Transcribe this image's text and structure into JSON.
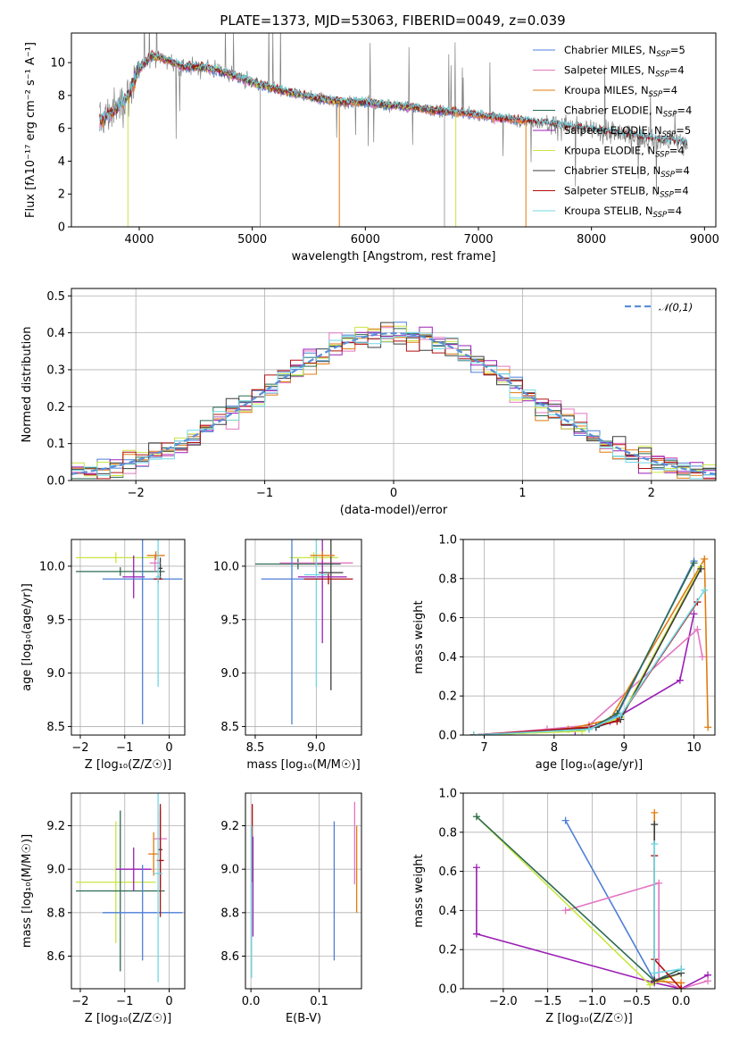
{
  "figure_title": "PLATE=1373, MJD=53063, FIBERID=0049, z=0.039",
  "colors": {
    "chabrier_miles": "#4e7fd8",
    "salpeter_miles": "#e377c2",
    "kroupa_miles": "#e07b10",
    "chabrier_elodie": "#2d6b52",
    "salpeter_elodie": "#9b1fb5",
    "kroupa_elodie": "#c8e640",
    "chabrier_stelib": "#3d3d3d",
    "salpeter_stelib": "#b01010",
    "kroupa_stelib": "#6fd8e6",
    "data": "#808080",
    "gauss": "#5b8fd9"
  },
  "chart_data": [
    {
      "id": "spectrum",
      "type": "line",
      "xlabel": "wavelength [Angstrom, rest frame]",
      "ylabel": "Flux [fλ10⁻¹⁷ erg cm⁻² s⁻¹ A⁻¹]",
      "xlim": [
        3400,
        9100
      ],
      "ylim": [
        0,
        11.8
      ],
      "xticks": [
        4000,
        5000,
        6000,
        7000,
        8000,
        9000
      ],
      "yticks": [
        0,
        2,
        4,
        6,
        8,
        10
      ],
      "grid": false,
      "legend_position": "top-right",
      "legend": [
        "Chabrier MILES, N_SSP=5",
        "Salpeter MILES, N_SSP=4",
        "Kroupa MILES, N_SSP=4",
        "Chabrier ELODIE, N_SSP=4",
        "Salpeter ELODIE, N_SSP=5",
        "Kroupa ELODIE, N_SSP=4",
        "Chabrier STELIB, N_SSP=4",
        "Salpeter STELIB, N_SSP=4",
        "Kroupa STELIB, N_SSP=4"
      ],
      "continuum": {
        "x": [
          3650,
          3700,
          3800,
          3900,
          4000,
          4100,
          4200,
          4300,
          4400,
          4500,
          4600,
          4800,
          5000,
          5200,
          5400,
          5600,
          5800,
          6000,
          6200,
          6400,
          6600,
          6800,
          7000,
          7200,
          7400,
          7600,
          7800,
          8000,
          8200,
          8400,
          8600,
          8850
        ],
        "y": [
          6.4,
          6.7,
          7.2,
          8.0,
          9.6,
          10.4,
          10.3,
          10.0,
          9.7,
          9.8,
          9.7,
          9.3,
          8.8,
          8.4,
          8.1,
          7.8,
          7.6,
          7.6,
          7.4,
          7.3,
          7.1,
          7.0,
          6.8,
          6.6,
          6.5,
          6.3,
          6.1,
          5.9,
          5.7,
          5.5,
          5.3,
          5.1
        ]
      }
    },
    {
      "id": "residuals",
      "type": "line",
      "xlabel": "(data-model)/error",
      "ylabel": "Normed distribution",
      "xlim": [
        -2.5,
        2.5
      ],
      "ylim": [
        0,
        0.52
      ],
      "xticks": [
        -2,
        -1,
        0,
        1,
        2
      ],
      "xtick_labels": [
        "−2",
        "−1",
        "0",
        "1",
        "2"
      ],
      "yticks": [
        0.0,
        0.1,
        0.2,
        0.3,
        0.4,
        0.5
      ],
      "ytick_labels": [
        "0.0",
        "0.1",
        "0.2",
        "0.3",
        "0.4",
        "0.5"
      ],
      "grid": true,
      "legend_position": "top-right",
      "gauss_label": "𝒩(0,1)",
      "bin_width": 0.1
    },
    {
      "id": "z-age",
      "xlabel": "Z [log₁₀(Z/Z☉)]",
      "ylabel": "age  [log₁₀(age/yr)]",
      "xlim": [
        -2.2,
        0.35
      ],
      "ylim": [
        8.42,
        10.25
      ],
      "xticks": [
        -2,
        -1,
        0
      ],
      "xtick_labels": [
        "−2",
        "−1",
        "0"
      ],
      "yticks": [
        8.5,
        9.0,
        9.5,
        10.0
      ],
      "ytick_labels": [
        "8.5",
        "9.0",
        "9.5",
        "10.0"
      ],
      "grid": true,
      "errorbars": [
        {
          "c": "kroupa_elodie",
          "x": -1.2,
          "xe": 0.9,
          "y": 10.08,
          "ye": 0.05
        },
        {
          "c": "chabrier_elodie",
          "x": -1.1,
          "xe": 1.0,
          "y": 9.95,
          "ye": 0.04
        },
        {
          "c": "chabrier_stelib",
          "x": -0.2,
          "xe": 0.05,
          "y": 9.98,
          "ye": 0.1
        },
        {
          "c": "salpeter_elodie",
          "x": -0.8,
          "xe": 0.25,
          "y": 9.9,
          "ye": 0.2
        },
        {
          "c": "chabrier_miles",
          "x": -0.6,
          "xe": 0.9,
          "y": 9.88,
          "ye": 1.36
        },
        {
          "c": "salpeter_miles",
          "x": -0.32,
          "xe": 0.12,
          "y": 10.03,
          "ye": 0.08
        },
        {
          "c": "kroupa_miles",
          "x": -0.3,
          "xe": 0.2,
          "y": 10.1,
          "ye": 0.04
        },
        {
          "c": "salpeter_stelib",
          "x": -0.25,
          "xe": 0.1,
          "y": 9.88,
          "ye": 0.04
        },
        {
          "c": "kroupa_stelib",
          "x": -0.25,
          "xe": 0.05,
          "y": 9.9,
          "ye": 1.03
        }
      ]
    },
    {
      "id": "mass-age",
      "xlabel": "mass [log₁₀(M/M☉)]",
      "ylabel": "",
      "xlim": [
        8.42,
        9.37
      ],
      "ylim": [
        8.42,
        10.25
      ],
      "xticks": [
        8.5,
        9.0
      ],
      "xtick_labels": [
        "8.5",
        "9.0"
      ],
      "yticks": [
        8.5,
        9.0,
        9.5,
        10.0
      ],
      "ytick_labels": [
        "8.5",
        "9.0",
        "9.5",
        "10.0"
      ],
      "grid": true,
      "errorbars": [
        {
          "c": "kroupa_elodie",
          "x": 8.98,
          "xe": 0.2,
          "y": 10.08,
          "ye": 0.05
        },
        {
          "c": "chabrier_elodie",
          "x": 8.85,
          "xe": 0.35,
          "y": 10.02,
          "ye": 0.05
        },
        {
          "c": "salpeter_miles",
          "x": 9.0,
          "xe": 0.3,
          "y": 10.03,
          "ye": 0.05
        },
        {
          "c": "chabrier_stelib",
          "x": 9.12,
          "xe": 0.1,
          "y": 9.94,
          "ye": 1.1
        },
        {
          "c": "chabrier_miles",
          "x": 8.8,
          "xe": 0.25,
          "y": 9.88,
          "ye": 1.36
        },
        {
          "c": "salpeter_elodie",
          "x": 9.05,
          "xe": 0.2,
          "y": 9.9,
          "ye": 0.62
        },
        {
          "c": "kroupa_stelib",
          "x": 9.0,
          "xe": 0.1,
          "y": 9.92,
          "ye": 1.05
        },
        {
          "c": "salpeter_stelib",
          "x": 9.1,
          "xe": 0.2,
          "y": 9.88,
          "ye": 0.05
        },
        {
          "c": "kroupa_miles",
          "x": 9.05,
          "xe": 0.1,
          "y": 10.1,
          "ye": 0.04
        }
      ]
    },
    {
      "id": "age-weight",
      "type": "line",
      "xlabel": "age  [log₁₀(age/yr)]",
      "ylabel": "mass weight",
      "xlim": [
        6.7,
        10.3
      ],
      "ylim": [
        0,
        1.0
      ],
      "xticks": [
        7,
        8,
        9,
        10
      ],
      "xtick_labels": [
        "7",
        "8",
        "9",
        "10"
      ],
      "yticks": [
        0.0,
        0.2,
        0.4,
        0.6,
        0.8,
        1.0
      ],
      "ytick_labels": [
        "0.0",
        "0.2",
        "0.4",
        "0.6",
        "0.8",
        "1.0"
      ],
      "grid": true,
      "series": [
        {
          "c": "salpeter_elodie",
          "x": [
            6.85,
            8.3,
            8.8,
            9.8,
            10.0
          ],
          "y": [
            0.0,
            0.02,
            0.07,
            0.28,
            0.62
          ]
        },
        {
          "c": "salpeter_miles",
          "x": [
            6.85,
            7.9,
            8.5,
            10.05,
            10.12
          ],
          "y": [
            0.0,
            0.03,
            0.05,
            0.54,
            0.4
          ]
        },
        {
          "c": "kroupa_miles",
          "x": [
            6.85,
            8.2,
            8.8,
            10.15,
            10.2
          ],
          "y": [
            0.0,
            0.03,
            0.08,
            0.9,
            0.04
          ]
        },
        {
          "c": "chabrier_miles",
          "x": [
            6.85,
            8.6,
            8.9,
            10.0
          ],
          "y": [
            0.0,
            0.04,
            0.1,
            0.89
          ]
        },
        {
          "c": "chabrier_elodie",
          "x": [
            6.85,
            8.5,
            8.9,
            10.0
          ],
          "y": [
            0.0,
            0.03,
            0.11,
            0.88
          ]
        },
        {
          "c": "kroupa_elodie",
          "x": [
            6.85,
            8.4,
            8.95,
            10.1
          ],
          "y": [
            0.0,
            0.02,
            0.09,
            0.86
          ]
        },
        {
          "c": "chabrier_stelib",
          "x": [
            6.85,
            8.6,
            8.95,
            10.1
          ],
          "y": [
            0.0,
            0.04,
            0.08,
            0.85
          ]
        },
        {
          "c": "salpeter_stelib",
          "x": [
            6.85,
            8.5,
            8.9,
            10.05
          ],
          "y": [
            0.0,
            0.04,
            0.07,
            0.68
          ]
        },
        {
          "c": "kroupa_stelib",
          "x": [
            6.85,
            8.5,
            8.95,
            10.15
          ],
          "y": [
            0.0,
            0.03,
            0.1,
            0.74
          ]
        }
      ]
    },
    {
      "id": "z-mass",
      "xlabel": "Z [log₁₀(Z/Z☉)]",
      "ylabel": "mass [log₁₀(M/M☉)]",
      "xlim": [
        -2.2,
        0.35
      ],
      "ylim": [
        8.45,
        9.35
      ],
      "xticks": [
        -2,
        -1,
        0
      ],
      "xtick_labels": [
        "−2",
        "−1",
        "0"
      ],
      "yticks": [
        8.6,
        8.8,
        9.0,
        9.2
      ],
      "ytick_labels": [
        "8.6",
        "8.8",
        "9.0",
        "9.2"
      ],
      "grid": true,
      "errorbars": [
        {
          "c": "kroupa_elodie",
          "x": -1.2,
          "xe": 0.9,
          "y": 8.94,
          "ye": 0.28
        },
        {
          "c": "chabrier_elodie",
          "x": -1.1,
          "xe": 1.0,
          "y": 8.9,
          "ye": 0.37
        },
        {
          "c": "chabrier_stelib",
          "x": -0.2,
          "xe": 0.05,
          "y": 9.09,
          "ye": 0.18
        },
        {
          "c": "salpeter_elodie",
          "x": -0.8,
          "xe": 0.4,
          "y": 9.0,
          "ye": 0.1
        },
        {
          "c": "chabrier_miles",
          "x": -0.6,
          "xe": 0.9,
          "y": 8.8,
          "ye": 0.22
        },
        {
          "c": "salpeter_miles",
          "x": -0.2,
          "xe": 0.15,
          "y": 9.14,
          "ye": 0.14
        },
        {
          "c": "kroupa_miles",
          "x": -0.35,
          "xe": 0.12,
          "y": 9.07,
          "ye": 0.1
        },
        {
          "c": "salpeter_stelib",
          "x": -0.2,
          "xe": 0.08,
          "y": 9.04,
          "ye": 0.26
        },
        {
          "c": "kroupa_stelib",
          "x": -0.25,
          "xe": 0.1,
          "y": 8.98,
          "ye": 0.5
        }
      ]
    },
    {
      "id": "ebv-mass",
      "xlabel": "E(B-V)",
      "ylabel": "",
      "xlim": [
        -0.008,
        0.162
      ],
      "ylim": [
        8.45,
        9.35
      ],
      "xticks": [
        0.0,
        0.1
      ],
      "xtick_labels": [
        "0.0",
        "0.1"
      ],
      "yticks": [
        8.6,
        8.8,
        9.0,
        9.2
      ],
      "ytick_labels": [
        "8.6",
        "8.8",
        "9.0",
        "9.2"
      ],
      "grid": true,
      "errorbars": [
        {
          "c": "salpeter_stelib",
          "x": 0.002,
          "xe": 0.0,
          "y": 9.12,
          "ye": 0.18
        },
        {
          "c": "salpeter_elodie",
          "x": 0.003,
          "xe": 0.0,
          "y": 8.92,
          "ye": 0.23
        },
        {
          "c": "kroupa_stelib",
          "x": 0.001,
          "xe": 0.0,
          "y": 8.85,
          "ye": 0.35
        },
        {
          "c": "chabrier_miles",
          "x": 0.122,
          "xe": 0.0,
          "y": 8.9,
          "ye": 0.32
        },
        {
          "c": "salpeter_miles",
          "x": 0.152,
          "xe": 0.0,
          "y": 9.12,
          "ye": 0.19
        },
        {
          "c": "kroupa_miles",
          "x": 0.155,
          "xe": 0.0,
          "y": 9.0,
          "ye": 0.2
        }
      ]
    },
    {
      "id": "z-weight",
      "type": "line",
      "xlabel": "Z [log₁₀(Z/Z☉)]",
      "ylabel": "mass weight",
      "xlim": [
        -2.45,
        0.38
      ],
      "ylim": [
        0,
        1.0
      ],
      "xticks": [
        -2.0,
        -1.5,
        -1.0,
        -0.5,
        0.0
      ],
      "xtick_labels": [
        "−2.0",
        "−1.5",
        "−1.0",
        "−0.5",
        "0.0"
      ],
      "yticks": [
        0.0,
        0.2,
        0.4,
        0.6,
        0.8,
        1.0
      ],
      "ytick_labels": [
        "0.0",
        "0.2",
        "0.4",
        "0.6",
        "0.8",
        "1.0"
      ],
      "grid": true,
      "series": [
        {
          "c": "salpeter_elodie",
          "x": [
            -2.3,
            -2.3,
            -0.3,
            0.0,
            0.3
          ],
          "y": [
            0.62,
            0.28,
            0.03,
            0.0,
            0.07
          ]
        },
        {
          "c": "chabrier_miles",
          "x": [
            -1.3,
            -0.3,
            0.0
          ],
          "y": [
            0.86,
            0.04,
            0.1
          ]
        },
        {
          "c": "salpeter_miles",
          "x": [
            -1.3,
            -0.25,
            -0.25,
            0.0,
            0.3
          ],
          "y": [
            0.4,
            0.54,
            0.05,
            0.0,
            0.04
          ]
        },
        {
          "c": "kroupa_elodie",
          "x": [
            -2.3,
            -0.35,
            0.0
          ],
          "y": [
            0.88,
            0.02,
            0.08
          ]
        },
        {
          "c": "chabrier_elodie",
          "x": [
            -2.3,
            -0.3,
            0.0
          ],
          "y": [
            0.88,
            0.04,
            0.1
          ]
        },
        {
          "c": "kroupa_miles",
          "x": [
            -0.3,
            -0.3,
            0.0,
            0.0
          ],
          "y": [
            0.9,
            0.04,
            0.03,
            0.0
          ]
        },
        {
          "c": "chabrier_stelib",
          "x": [
            -0.3,
            -0.3,
            0.0
          ],
          "y": [
            0.84,
            0.04,
            0.08
          ]
        },
        {
          "c": "salpeter_stelib",
          "x": [
            -0.3,
            -0.3,
            0.0
          ],
          "y": [
            0.68,
            0.15,
            0.0
          ]
        },
        {
          "c": "kroupa_stelib",
          "x": [
            -0.3,
            -0.3,
            0.0
          ],
          "y": [
            0.74,
            0.08,
            0.1
          ]
        }
      ]
    }
  ]
}
